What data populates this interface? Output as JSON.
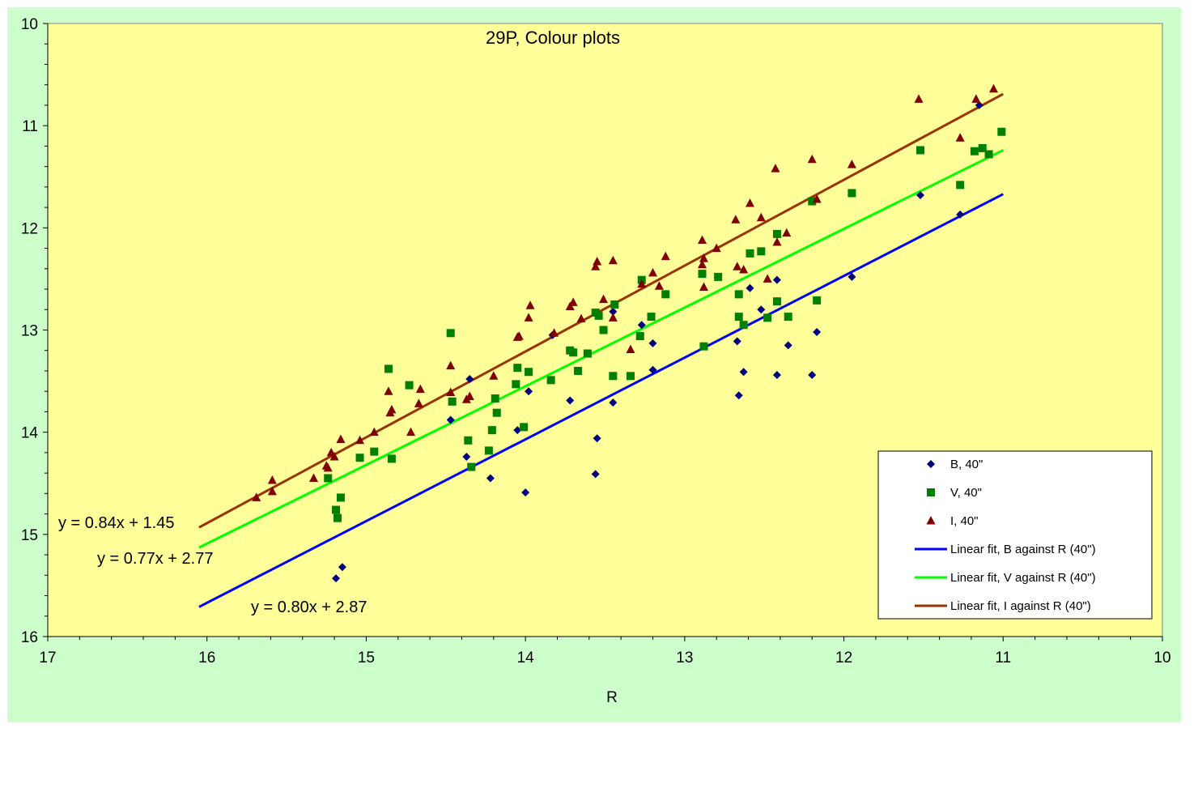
{
  "colors": {
    "frame_bg": "#ccffcc",
    "plot_bg": "#ffff99",
    "B": "#000080",
    "V": "#008000",
    "I": "#800000",
    "fit_B": "#0000ff",
    "fit_V": "#00ff00",
    "fit_I": "#993300"
  },
  "chart_data": {
    "type": "scatter",
    "title": "29P, Colour plots",
    "xlabel": "R",
    "ylabel": "",
    "xlim": [
      17,
      10
    ],
    "ylim": [
      16,
      10
    ],
    "x_reversed": true,
    "y_reversed": true,
    "x_ticks": [
      "17",
      "16",
      "15",
      "14",
      "13",
      "12",
      "11",
      "10"
    ],
    "y_ticks": [
      "10",
      "11",
      "12",
      "13",
      "14",
      "15",
      "16"
    ],
    "grid": false,
    "legend_position": "bottom-right",
    "series": [
      {
        "name": "B, 40\"",
        "marker": "diamond",
        "points": [
          [
            15.19,
            15.43
          ],
          [
            15.15,
            15.32
          ],
          [
            14.37,
            14.24
          ],
          [
            14.47,
            13.88
          ],
          [
            14.35,
            13.48
          ],
          [
            14.22,
            14.45
          ],
          [
            14.0,
            14.59
          ],
          [
            14.05,
            13.98
          ],
          [
            13.98,
            13.6
          ],
          [
            13.83,
            13.05
          ],
          [
            13.72,
            13.69
          ],
          [
            13.56,
            14.41
          ],
          [
            13.55,
            14.06
          ],
          [
            13.45,
            13.71
          ],
          [
            13.45,
            12.82
          ],
          [
            13.27,
            12.95
          ],
          [
            13.2,
            13.13
          ],
          [
            13.2,
            13.39
          ],
          [
            12.67,
            13.11
          ],
          [
            12.66,
            13.64
          ],
          [
            12.63,
            13.41
          ],
          [
            12.59,
            12.59
          ],
          [
            12.52,
            12.8
          ],
          [
            12.42,
            13.44
          ],
          [
            12.42,
            12.51
          ],
          [
            12.35,
            13.15
          ],
          [
            12.2,
            13.44
          ],
          [
            12.17,
            13.02
          ],
          [
            11.95,
            12.48
          ],
          [
            11.52,
            11.68
          ],
          [
            11.27,
            11.87
          ],
          [
            11.15,
            10.8
          ]
        ]
      },
      {
        "name": "V, 40\"",
        "marker": "square",
        "points": [
          [
            15.24,
            14.45
          ],
          [
            15.19,
            14.76
          ],
          [
            15.18,
            14.84
          ],
          [
            15.16,
            14.64
          ],
          [
            15.04,
            14.25
          ],
          [
            14.95,
            14.19
          ],
          [
            14.86,
            13.38
          ],
          [
            14.84,
            14.26
          ],
          [
            14.73,
            13.54
          ],
          [
            14.47,
            13.03
          ],
          [
            14.46,
            13.7
          ],
          [
            14.36,
            14.08
          ],
          [
            14.34,
            14.34
          ],
          [
            14.23,
            14.18
          ],
          [
            14.21,
            13.98
          ],
          [
            14.19,
            13.67
          ],
          [
            14.18,
            13.81
          ],
          [
            14.06,
            13.53
          ],
          [
            14.05,
            13.37
          ],
          [
            14.01,
            13.95
          ],
          [
            13.98,
            13.41
          ],
          [
            13.84,
            13.49
          ],
          [
            13.72,
            13.2
          ],
          [
            13.7,
            13.22
          ],
          [
            13.67,
            13.4
          ],
          [
            13.61,
            13.23
          ],
          [
            13.56,
            12.83
          ],
          [
            13.54,
            12.86
          ],
          [
            13.51,
            13.0
          ],
          [
            13.45,
            13.45
          ],
          [
            13.44,
            12.75
          ],
          [
            13.34,
            13.45
          ],
          [
            13.28,
            13.06
          ],
          [
            13.27,
            12.51
          ],
          [
            13.21,
            12.87
          ],
          [
            13.12,
            12.65
          ],
          [
            12.89,
            12.45
          ],
          [
            12.88,
            13.16
          ],
          [
            12.79,
            12.48
          ],
          [
            12.66,
            12.65
          ],
          [
            12.66,
            12.87
          ],
          [
            12.63,
            12.95
          ],
          [
            12.59,
            12.25
          ],
          [
            12.52,
            12.23
          ],
          [
            12.48,
            12.88
          ],
          [
            12.42,
            12.06
          ],
          [
            12.42,
            12.72
          ],
          [
            12.35,
            12.87
          ],
          [
            12.2,
            11.74
          ],
          [
            12.17,
            12.71
          ],
          [
            11.95,
            11.66
          ],
          [
            11.52,
            11.24
          ],
          [
            11.27,
            11.58
          ],
          [
            11.18,
            11.25
          ],
          [
            11.13,
            11.22
          ],
          [
            11.09,
            11.28
          ],
          [
            11.01,
            11.06
          ]
        ]
      },
      {
        "name": "I, 40\"",
        "marker": "triangle",
        "points": [
          [
            15.69,
            14.64
          ],
          [
            15.59,
            14.47
          ],
          [
            15.59,
            14.58
          ],
          [
            15.33,
            14.45
          ],
          [
            15.25,
            14.33
          ],
          [
            15.24,
            14.35
          ],
          [
            15.22,
            14.2
          ],
          [
            15.2,
            14.24
          ],
          [
            15.16,
            14.07
          ],
          [
            15.04,
            14.08
          ],
          [
            14.95,
            14.0
          ],
          [
            14.86,
            13.6
          ],
          [
            14.85,
            13.81
          ],
          [
            14.84,
            13.78
          ],
          [
            14.72,
            14.0
          ],
          [
            14.67,
            13.72
          ],
          [
            14.66,
            13.58
          ],
          [
            14.47,
            13.35
          ],
          [
            14.47,
            13.61
          ],
          [
            14.37,
            13.68
          ],
          [
            14.35,
            13.65
          ],
          [
            14.2,
            13.45
          ],
          [
            14.05,
            13.07
          ],
          [
            14.04,
            13.06
          ],
          [
            13.98,
            12.88
          ],
          [
            13.97,
            12.76
          ],
          [
            13.82,
            13.03
          ],
          [
            13.72,
            12.77
          ],
          [
            13.7,
            12.73
          ],
          [
            13.65,
            12.89
          ],
          [
            13.56,
            12.38
          ],
          [
            13.55,
            12.33
          ],
          [
            13.51,
            12.7
          ],
          [
            13.45,
            12.32
          ],
          [
            13.45,
            12.88
          ],
          [
            13.34,
            13.19
          ],
          [
            13.27,
            12.55
          ],
          [
            13.2,
            12.44
          ],
          [
            13.16,
            12.57
          ],
          [
            13.12,
            12.28
          ],
          [
            12.89,
            12.12
          ],
          [
            12.89,
            12.36
          ],
          [
            12.88,
            12.58
          ],
          [
            12.88,
            12.3
          ],
          [
            12.8,
            12.2
          ],
          [
            12.68,
            11.92
          ],
          [
            12.67,
            12.38
          ],
          [
            12.63,
            12.41
          ],
          [
            12.59,
            11.76
          ],
          [
            12.52,
            11.9
          ],
          [
            12.48,
            12.5
          ],
          [
            12.43,
            11.42
          ],
          [
            12.42,
            12.14
          ],
          [
            12.36,
            12.05
          ],
          [
            12.2,
            11.33
          ],
          [
            12.17,
            11.72
          ],
          [
            11.95,
            11.38
          ],
          [
            11.53,
            10.74
          ],
          [
            11.27,
            11.12
          ],
          [
            11.17,
            10.74
          ],
          [
            11.06,
            10.64
          ]
        ]
      }
    ],
    "fits": [
      {
        "name": "Linear fit, B against R (40\")",
        "slope": 0.8,
        "intercept": 2.87,
        "x_range": [
          16.05,
          11.0
        ],
        "equation": "y = 0.80x + 2.87"
      },
      {
        "name": "Linear fit, V against R (40\")",
        "slope": 0.77,
        "intercept": 2.77,
        "x_range": [
          16.05,
          11.0
        ],
        "equation": "y = 0.77x + 2.77"
      },
      {
        "name": "Linear fit, I against R (40\")",
        "slope": 0.84,
        "intercept": 1.45,
        "x_range": [
          16.05,
          11.0
        ],
        "equation": "y = 0.84x + 1.45"
      }
    ]
  }
}
